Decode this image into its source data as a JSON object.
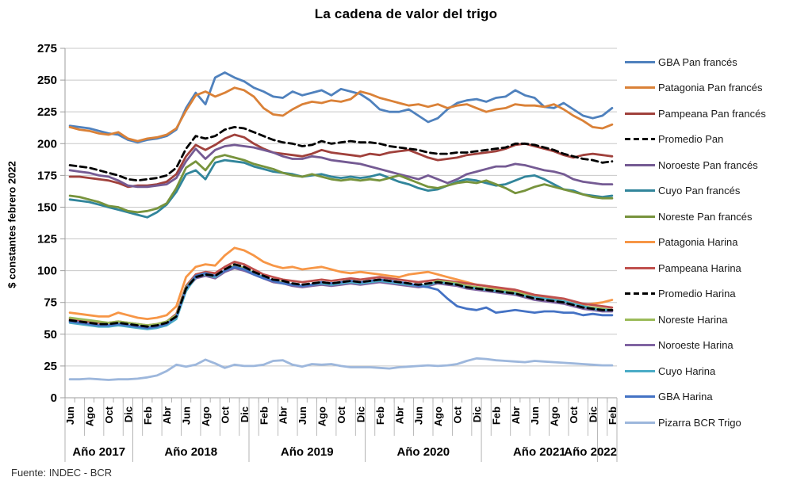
{
  "title": "La cadena de valor del trigo",
  "y_axis_title": "$ constantes febrero 2022",
  "source": "Fuente: INDEC - BCR",
  "chart_data": {
    "type": "line",
    "title": "La cadena de valor del trigo",
    "ylabel": "$ constantes febrero 2022",
    "ylim": [
      0,
      275
    ],
    "y_ticks": [
      275,
      250,
      225,
      200,
      175,
      150,
      125,
      100,
      75,
      50,
      25,
      0
    ],
    "grid": true,
    "legend_position": "right",
    "months_total": 57,
    "x_label_interval": 2,
    "x_tick_labels": [
      "Jun",
      "Ago",
      "Oct",
      "Dic",
      "Feb",
      "Abr",
      "Jun",
      "Ago",
      "Oct",
      "Dic",
      "Feb",
      "Abr",
      "Jun",
      "Ago",
      "Oct",
      "Dic",
      "Feb",
      "Abr",
      "Jun",
      "Ago",
      "Oct",
      "Dic",
      "Feb",
      "Abr",
      "Jun",
      "Ago",
      "Oct",
      "Dic",
      "Feb"
    ],
    "year_groups": [
      {
        "label": "Año 2017",
        "months": 7
      },
      {
        "label": "Año 2018",
        "months": 12
      },
      {
        "label": "Año 2019",
        "months": 12
      },
      {
        "label": "Año 2020",
        "months": 12
      },
      {
        "label": "Año 2021",
        "months": 12
      },
      {
        "label": "Año 2022",
        "months": 2
      }
    ],
    "series": [
      {
        "name": "GBA Pan francés",
        "color": "#4F81BD",
        "dashed": false,
        "values": [
          214,
          213,
          212,
          210,
          208,
          207,
          203,
          201,
          203,
          204,
          206,
          211,
          228,
          240,
          231,
          252,
          256,
          252,
          249,
          244,
          241,
          237,
          236,
          241,
          238,
          240,
          242,
          238,
          243,
          241,
          239,
          234,
          227,
          225,
          225,
          227,
          222,
          217,
          220,
          227,
          232,
          234,
          235,
          233,
          236,
          237,
          242,
          238,
          236,
          229,
          228,
          232,
          227,
          222,
          220,
          222,
          228
        ]
      },
      {
        "name": "Patagonia Pan francés",
        "color": "#DA8137",
        "dashed": false,
        "values": [
          213,
          211,
          210,
          208,
          207,
          209,
          204,
          202,
          204,
          205,
          207,
          212,
          226,
          238,
          241,
          237,
          240,
          244,
          242,
          237,
          228,
          223,
          222,
          227,
          231,
          233,
          232,
          234,
          233,
          235,
          241,
          239,
          236,
          234,
          232,
          230,
          231,
          229,
          231,
          228,
          230,
          231,
          228,
          225,
          227,
          228,
          231,
          230,
          230,
          229,
          231,
          227,
          222,
          218,
          213,
          212,
          215
        ]
      },
      {
        "name": "Pampeana Pan francés",
        "color": "#A0413C",
        "dashed": false,
        "values": [
          174,
          174,
          173,
          172,
          171,
          169,
          166,
          167,
          167,
          168,
          170,
          176,
          190,
          199,
          195,
          199,
          204,
          207,
          205,
          200,
          196,
          193,
          192,
          191,
          190,
          192,
          195,
          193,
          192,
          191,
          190,
          192,
          191,
          193,
          194,
          195,
          192,
          189,
          187,
          188,
          189,
          191,
          192,
          193,
          194,
          196,
          199,
          200,
          198,
          196,
          194,
          191,
          189,
          191,
          192,
          191,
          190
        ]
      },
      {
        "name": "Promedio Pan",
        "color": "#000000",
        "dashed": true,
        "values": [
          183,
          182,
          181,
          179,
          177,
          175,
          172,
          171,
          172,
          173,
          175,
          181,
          196,
          206,
          204,
          206,
          211,
          213,
          212,
          209,
          206,
          203,
          201,
          200,
          198,
          199,
          202,
          200,
          201,
          202,
          201,
          201,
          200,
          198,
          197,
          196,
          195,
          193,
          192,
          192,
          193,
          193,
          194,
          195,
          196,
          197,
          200,
          200,
          199,
          197,
          195,
          192,
          190,
          188,
          187,
          185,
          186
        ]
      },
      {
        "name": "Noroeste Pan francés",
        "color": "#745A93",
        "dashed": false,
        "values": [
          179,
          178,
          177,
          175,
          174,
          171,
          167,
          166,
          166,
          167,
          168,
          173,
          186,
          196,
          188,
          195,
          198,
          199,
          198,
          197,
          195,
          193,
          190,
          188,
          188,
          190,
          189,
          187,
          186,
          185,
          184,
          182,
          180,
          178,
          176,
          174,
          172,
          175,
          172,
          169,
          172,
          176,
          178,
          180,
          182,
          182,
          184,
          183,
          181,
          179,
          178,
          176,
          172,
          170,
          169,
          168,
          168
        ]
      },
      {
        "name": "Cuyo Pan francés",
        "color": "#31859B",
        "dashed": false,
        "values": [
          156,
          155,
          154,
          152,
          150,
          148,
          146,
          144,
          142,
          146,
          152,
          162,
          176,
          179,
          172,
          185,
          187,
          186,
          185,
          182,
          180,
          178,
          177,
          176,
          174,
          175,
          176,
          174,
          173,
          174,
          173,
          174,
          176,
          173,
          170,
          168,
          165,
          163,
          164,
          167,
          170,
          172,
          171,
          169,
          167,
          168,
          171,
          174,
          175,
          172,
          168,
          164,
          163,
          160,
          159,
          158,
          159
        ]
      },
      {
        "name": "Noreste Pan francés",
        "color": "#77933C",
        "dashed": false,
        "values": [
          159,
          158,
          156,
          154,
          151,
          150,
          147,
          146,
          147,
          149,
          153,
          165,
          181,
          186,
          179,
          189,
          191,
          189,
          187,
          184,
          182,
          180,
          177,
          175,
          174,
          176,
          174,
          172,
          171,
          172,
          171,
          172,
          171,
          173,
          175,
          172,
          169,
          166,
          165,
          167,
          169,
          170,
          169,
          171,
          168,
          165,
          161,
          163,
          166,
          168,
          166,
          164,
          162,
          160,
          158,
          157,
          157
        ]
      },
      {
        "name": "Patagonia Harina",
        "color": "#F79646",
        "dashed": false,
        "values": [
          67,
          66,
          65,
          64,
          64,
          67,
          65,
          63,
          62,
          63,
          65,
          72,
          95,
          103,
          105,
          104,
          112,
          118,
          116,
          112,
          107,
          104,
          102,
          103,
          101,
          102,
          103,
          101,
          99,
          98,
          99,
          98,
          97,
          96,
          95,
          97,
          98,
          99,
          97,
          95,
          93,
          91,
          89,
          88,
          86,
          85,
          84,
          82,
          80,
          79,
          78,
          76,
          74,
          73,
          74,
          75,
          77
        ]
      },
      {
        "name": "Pampeana Harina",
        "color": "#C0504D",
        "dashed": false,
        "values": [
          62,
          61,
          60,
          59,
          59,
          60,
          59,
          58,
          57,
          58,
          60,
          66,
          88,
          97,
          99,
          98,
          103,
          107,
          105,
          101,
          97,
          95,
          93,
          92,
          91,
          92,
          93,
          92,
          93,
          94,
          93,
          94,
          95,
          94,
          93,
          92,
          91,
          92,
          93,
          92,
          91,
          90,
          89,
          88,
          87,
          86,
          85,
          83,
          81,
          80,
          79,
          78,
          76,
          74,
          73,
          72,
          71
        ]
      },
      {
        "name": "Promedio Harina",
        "color": "#000000",
        "dashed": true,
        "values": [
          61,
          60,
          59,
          58,
          58,
          59,
          58,
          57,
          56,
          57,
          59,
          64,
          86,
          95,
          97,
          96,
          101,
          105,
          103,
          99,
          96,
          93,
          92,
          90,
          89,
          90,
          91,
          90,
          91,
          92,
          91,
          92,
          93,
          92,
          91,
          90,
          89,
          90,
          91,
          90,
          89,
          87,
          86,
          85,
          84,
          83,
          82,
          80,
          78,
          77,
          76,
          75,
          73,
          71,
          70,
          69,
          69
        ]
      },
      {
        "name": "Noreste Harina",
        "color": "#9BBB59",
        "dashed": false,
        "values": [
          63,
          62,
          61,
          60,
          59,
          60,
          59,
          58,
          57,
          58,
          60,
          65,
          87,
          96,
          98,
          96,
          100,
          104,
          102,
          98,
          95,
          92,
          91,
          89,
          88,
          89,
          90,
          89,
          90,
          91,
          90,
          91,
          92,
          91,
          90,
          89,
          88,
          89,
          92,
          91,
          90,
          88,
          87,
          86,
          85,
          84,
          83,
          81,
          79,
          78,
          77,
          76,
          74,
          72,
          71,
          70,
          69
        ]
      },
      {
        "name": "Noroeste Harina",
        "color": "#8064A2",
        "dashed": false,
        "values": [
          60,
          59,
          58,
          57,
          57,
          58,
          57,
          56,
          55,
          56,
          58,
          63,
          85,
          94,
          96,
          94,
          99,
          102,
          100,
          97,
          94,
          91,
          90,
          88,
          87,
          88,
          89,
          88,
          89,
          90,
          89,
          90,
          91,
          90,
          89,
          88,
          87,
          88,
          90,
          89,
          88,
          86,
          85,
          84,
          83,
          82,
          81,
          79,
          77,
          76,
          75,
          74,
          72,
          70,
          69,
          68,
          68
        ]
      },
      {
        "name": "Cuyo Harina",
        "color": "#4BACC6",
        "dashed": false,
        "values": [
          59,
          58,
          57,
          56,
          56,
          57,
          56,
          55,
          54,
          55,
          57,
          62,
          84,
          95,
          97,
          95,
          100,
          103,
          101,
          98,
          95,
          92,
          90,
          89,
          88,
          89,
          90,
          89,
          90,
          91,
          90,
          91,
          92,
          91,
          90,
          89,
          88,
          89,
          91,
          90,
          89,
          87,
          86,
          85,
          84,
          83,
          82,
          80,
          79,
          78,
          77,
          76,
          74,
          72,
          70,
          69,
          69
        ]
      },
      {
        "name": "GBA Harina",
        "color": "#4472C4",
        "dashed": false,
        "values": [
          60,
          59,
          58,
          57,
          57,
          58,
          57,
          56,
          55,
          56,
          58,
          64,
          86,
          96,
          98,
          96,
          100,
          103,
          101,
          97,
          94,
          92,
          90,
          89,
          88,
          89,
          91,
          90,
          91,
          92,
          91,
          92,
          93,
          92,
          91,
          90,
          88,
          87,
          85,
          78,
          72,
          70,
          69,
          71,
          67,
          68,
          69,
          68,
          67,
          68,
          68,
          67,
          67,
          65,
          66,
          65,
          65
        ]
      },
      {
        "name": "Pizarra BCR Trigo",
        "color": "#9DB7DC",
        "dashed": false,
        "values": [
          14.5,
          14.5,
          15,
          14.5,
          14,
          14.5,
          14.5,
          15,
          16,
          17.5,
          21,
          26,
          24.5,
          26,
          30,
          27,
          23.5,
          26,
          25,
          25,
          26,
          29,
          29.5,
          26,
          24.5,
          26.5,
          26,
          26.5,
          25,
          24,
          24,
          24,
          23.5,
          23,
          24,
          24.5,
          25,
          25.5,
          25,
          25.5,
          26.5,
          29,
          31,
          30.5,
          29.5,
          29,
          28.5,
          28,
          29,
          28.5,
          28,
          27.5,
          27,
          26.5,
          26,
          25.5,
          25.5
        ]
      }
    ]
  }
}
